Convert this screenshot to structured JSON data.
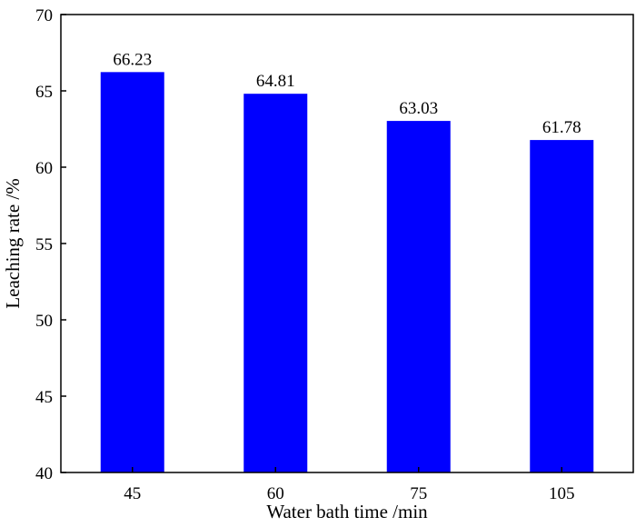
{
  "chart_data": {
    "type": "bar",
    "categories": [
      "45",
      "60",
      "75",
      "105"
    ],
    "values": [
      66.23,
      64.81,
      63.03,
      61.78
    ],
    "data_labels": [
      "66.23",
      "64.81",
      "63.03",
      "61.78"
    ],
    "xlabel": "Water bath time /min",
    "ylabel": "Leaching rate /%",
    "ylim": [
      40,
      70
    ],
    "yticks": [
      40,
      45,
      50,
      55,
      60,
      65,
      70
    ],
    "bar_color": "#0000ff",
    "grid": false,
    "legend": "none"
  }
}
